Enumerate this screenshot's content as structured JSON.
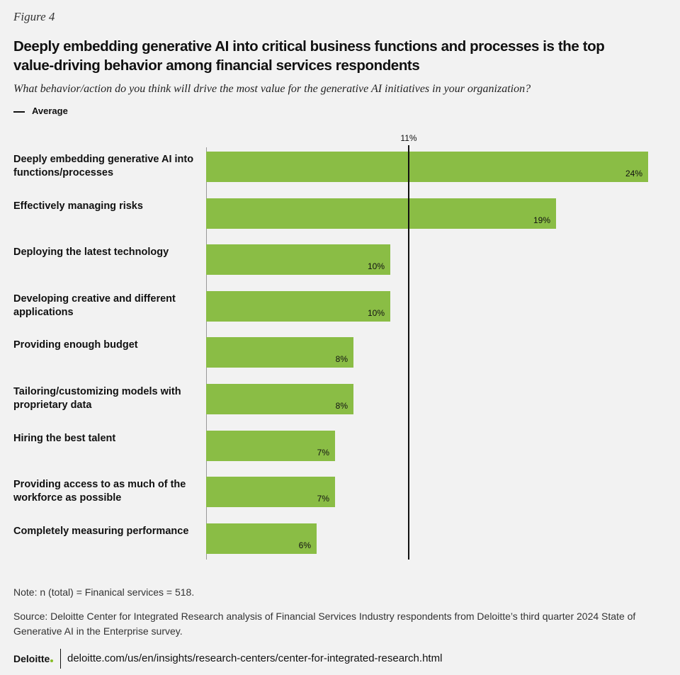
{
  "figure_label": "Figure 4",
  "chart_data": {
    "type": "bar",
    "orientation": "horizontal",
    "title": "Deeply embedding generative AI into critical business functions and processes is the top value-driving behavior among financial services respondents",
    "subtitle": "What behavior/action do you think will drive the most value for the generative AI initiatives in your organization?",
    "categories": [
      "Deeply embedding generative AI into functions/processes",
      "Effectively managing risks",
      "Deploying the latest technology",
      "Developing creative and different applications",
      "Providing enough budget",
      "Tailoring/customizing models with proprietary data",
      "Hiring the best talent",
      "Providing access to as much of the workforce as possible",
      "Completely measuring performance"
    ],
    "values": [
      24,
      19,
      10,
      10,
      8,
      8,
      7,
      7,
      6
    ],
    "value_labels": [
      "24%",
      "19%",
      "10%",
      "10%",
      "8%",
      "8%",
      "7%",
      "7%",
      "6%"
    ],
    "color": "#8abd45",
    "xlim": [
      0,
      24
    ],
    "average": {
      "name": "Average",
      "value": 11,
      "label": "11%"
    }
  },
  "note": "Note: n (total) =  Finanical services = 518.",
  "source": "Source: Deloitte Center for Integrated Research analysis of Financial Services Industry respondents from Deloitte’s third quarter 2024 State of Generative AI in the Enterprise survey.",
  "footer": {
    "logo": "Deloitte",
    "url": "deloitte.com/us/en/insights/research-centers/center-for-integrated-research.html"
  }
}
